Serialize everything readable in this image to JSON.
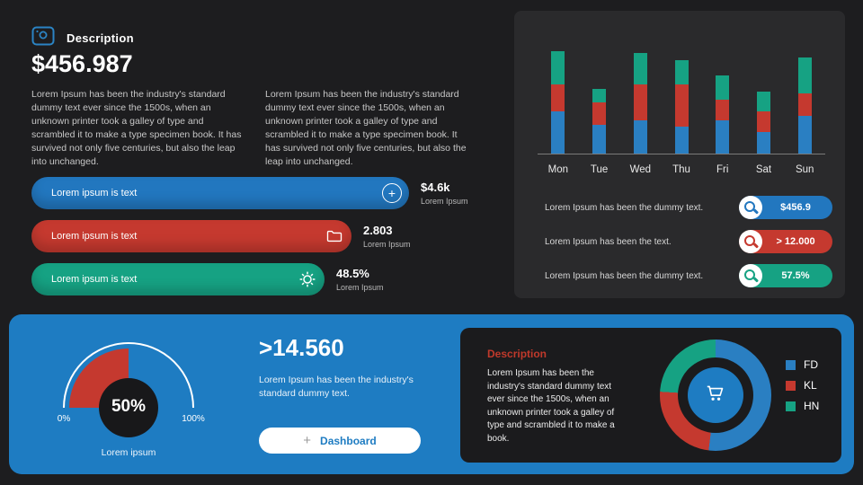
{
  "colors": {
    "accent_blue": "#2277bf",
    "red": "#c5392f",
    "green": "#16a283",
    "panel_blue": "#1e7cc2",
    "background": "#1d1d1f",
    "card": "#2a2a2c",
    "dark_card": "#1b1b1d"
  },
  "header": {
    "title": "Description",
    "amount": "$456.987"
  },
  "intro": {
    "paragraph_left": "Lorem Ipsum has been the industry's standard dummy text ever since the 1500s, when an unknown printer took a galley of type and scrambled it to make a type specimen book. It has survived not only five centuries, but also the leap into unchanged.",
    "paragraph_right": "Lorem Ipsum has been the industry's standard dummy text ever since the 1500s, when an unknown printer took a galley of type and scrambled it to make a type specimen book. It has survived not only five centuries, but also the leap into unchanged."
  },
  "pills": [
    {
      "label": "Lorem ipsum is text",
      "value": "$4.6k",
      "caption": "Lorem Ipsum",
      "color": "#2277bf",
      "icon": "plus-circle-icon"
    },
    {
      "label": "Lorem ipsum is text",
      "value": "2.803",
      "caption": "Lorem Ipsum",
      "color": "#c5392f",
      "icon": "folder-icon"
    },
    {
      "label": "Lorem ipsum is text",
      "value": "48.5%",
      "caption": "Lorem Ipsum",
      "color": "#16a283",
      "icon": "gear-icon"
    }
  ],
  "chart_card": {
    "rows": [
      {
        "text": "Lorem Ipsum has been the dummy text.",
        "value": "$456.9",
        "color": "#2277bf"
      },
      {
        "text": "Lorem Ipsum has been the text.",
        "value": "> 12.000",
        "color": "#c5392f"
      },
      {
        "text": "Lorem Ipsum has been the dummy text.",
        "value": "57.5%",
        "color": "#16a283"
      }
    ]
  },
  "bottom": {
    "highlight": {
      "value": ">14.560",
      "text": "Lorem Ipsum has been the industry's standard dummy text.",
      "button_label": "Dashboard"
    },
    "description_card": {
      "title": "Description",
      "text": "Lorem Ipsum has been the industry's standard dummy text ever since the 1500s, when an unknown printer took a galley of type and scrambled it to make a book."
    }
  },
  "chart_data": [
    {
      "type": "bar",
      "stacked": true,
      "title": "",
      "categories": [
        "Mon",
        "Tue",
        "Wed",
        "Thu",
        "Fri",
        "Sat",
        "Sun"
      ],
      "series": [
        {
          "name": "series-blue",
          "color": "#2a7fc2",
          "values": [
            47,
            32,
            37,
            30,
            37,
            24,
            42
          ]
        },
        {
          "name": "series-red",
          "color": "#c5392f",
          "values": [
            30,
            25,
            40,
            47,
            23,
            23,
            25
          ]
        },
        {
          "name": "series-green",
          "color": "#16a283",
          "values": [
            37,
            15,
            35,
            27,
            27,
            22,
            40
          ]
        }
      ],
      "xlabel": "",
      "ylabel": "",
      "ylim": [
        0,
        140
      ],
      "grid": false,
      "legend": "none"
    },
    {
      "type": "gauge",
      "value": 50,
      "center_label": "50%",
      "min_label": "0%",
      "max_label": "100%",
      "caption": "Lorem ipsum",
      "fill_color": "#c5392f",
      "arc_color": "#ffffff"
    },
    {
      "type": "pie",
      "donut": true,
      "labels": [
        "FD",
        "KL",
        "HN"
      ],
      "values": [
        52,
        24,
        24
      ],
      "colors": [
        "#2a7fc2",
        "#c5392f",
        "#16a283"
      ],
      "legend_position": "right",
      "center_icon": "shopping-cart-icon"
    }
  ]
}
